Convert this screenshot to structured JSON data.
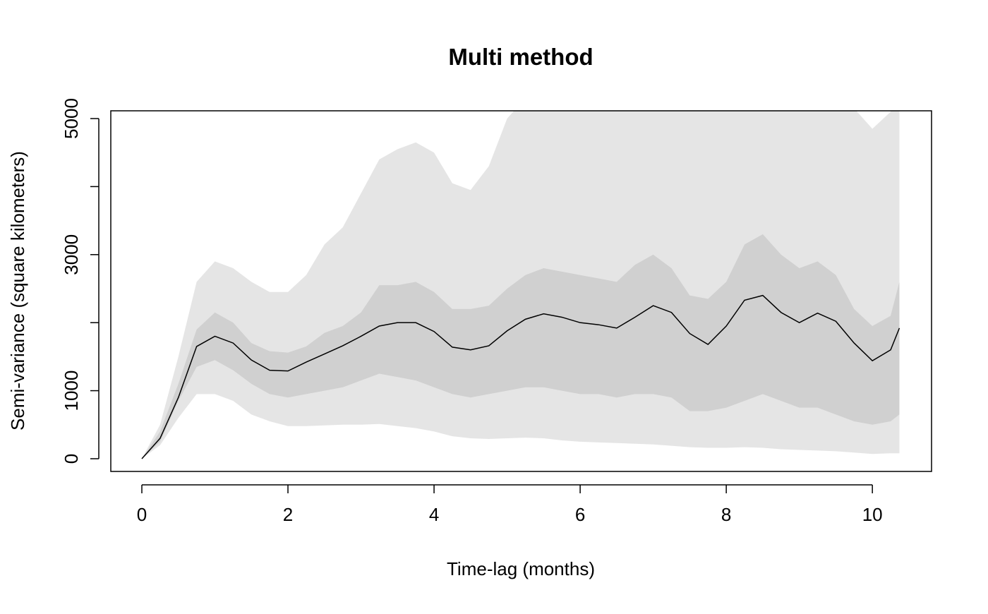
{
  "chart_data": {
    "type": "band-line",
    "title": "Multi method",
    "x_label": "Time-lag (months)",
    "y_label": "Semi-variance (square kilometers)",
    "x": [
      0,
      0.25,
      0.5,
      0.75,
      1,
      1.25,
      1.5,
      1.75,
      2,
      2.25,
      2.5,
      2.75,
      3,
      3.25,
      3.5,
      3.75,
      4,
      4.25,
      4.5,
      4.75,
      5,
      5.25,
      5.5,
      5.75,
      6,
      6.25,
      6.5,
      6.75,
      7,
      7.25,
      7.5,
      7.75,
      8,
      8.25,
      8.5,
      8.75,
      9,
      9.25,
      9.5,
      9.75,
      10,
      10.25,
      10.37
    ],
    "bands": [
      {
        "color": "#e5e5e5",
        "low": [
          0,
          200,
          600,
          950,
          950,
          850,
          650,
          550,
          480,
          480,
          490,
          500,
          500,
          510,
          480,
          450,
          400,
          330,
          300,
          290,
          300,
          310,
          300,
          270,
          250,
          240,
          230,
          220,
          210,
          190,
          170,
          160,
          160,
          170,
          160,
          140,
          130,
          120,
          110,
          90,
          70,
          80,
          80
        ],
        "high": [
          0,
          500,
          1500,
          2600,
          2900,
          2800,
          2600,
          2450,
          2450,
          2700,
          3150,
          3400,
          3900,
          4400,
          4550,
          4650,
          4500,
          4050,
          3950,
          4300,
          5000,
          5300,
          5400,
          5400,
          5500,
          5550,
          5600,
          5500,
          5400,
          5300,
          5200,
          5120,
          5300,
          5450,
          5600,
          5650,
          5700,
          5600,
          5400,
          5150,
          4850,
          5100,
          5500
        ]
      },
      {
        "color": "#d0d0d0",
        "low": [
          0,
          250,
          850,
          1350,
          1450,
          1300,
          1100,
          950,
          900,
          950,
          1000,
          1050,
          1150,
          1250,
          1200,
          1150,
          1050,
          950,
          900,
          950,
          1000,
          1050,
          1050,
          1000,
          950,
          950,
          900,
          950,
          950,
          900,
          700,
          700,
          750,
          850,
          950,
          850,
          750,
          750,
          650,
          550,
          500,
          550,
          650
        ],
        "high": [
          0,
          400,
          1100,
          1900,
          2150,
          2000,
          1700,
          1580,
          1560,
          1650,
          1850,
          1950,
          2150,
          2550,
          2550,
          2600,
          2450,
          2200,
          2200,
          2250,
          2500,
          2700,
          2800,
          2750,
          2700,
          2650,
          2600,
          2850,
          3000,
          2800,
          2400,
          2350,
          2600,
          3150,
          3300,
          3000,
          2800,
          2900,
          2700,
          2200,
          1950,
          2100,
          2600
        ]
      }
    ],
    "series": [
      {
        "color": "#000000",
        "values": [
          0,
          300,
          900,
          1650,
          1800,
          1700,
          1450,
          1300,
          1290,
          1420,
          1540,
          1660,
          1800,
          1950,
          2000,
          2000,
          1870,
          1640,
          1600,
          1660,
          1880,
          2050,
          2130,
          2080,
          2000,
          1970,
          1920,
          2080,
          2250,
          2150,
          1840,
          1680,
          1950,
          2330,
          2400,
          2150,
          2000,
          2140,
          2020,
          1700,
          1440,
          1600,
          1920
        ]
      }
    ],
    "xlim": [
      -0.425,
      10.81
    ],
    "ylim": [
      -187,
      5114
    ],
    "xticks": [
      0,
      2,
      4,
      6,
      8,
      10
    ],
    "yticks": [
      0,
      1000,
      3000,
      5000
    ],
    "yticks_unlabeled": [
      2000,
      4000
    ]
  }
}
